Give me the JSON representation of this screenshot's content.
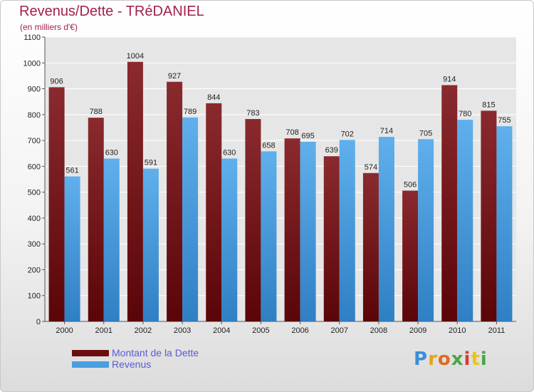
{
  "chart_data": {
    "type": "bar",
    "title": "Revenus/Dette - TRéDANIEL",
    "subtitle": "(en milliers d'€)",
    "categories": [
      "2000",
      "2001",
      "2002",
      "2003",
      "2004",
      "2005",
      "2006",
      "2007",
      "2008",
      "2009",
      "2010",
      "2011"
    ],
    "series": [
      {
        "name": "Montant de la Dette",
        "color": "#7a1518",
        "values": [
          906,
          788,
          1004,
          927,
          844,
          783,
          708,
          639,
          574,
          506,
          914,
          815
        ]
      },
      {
        "name": "Revenus",
        "color": "#4a9ee0",
        "values": [
          561,
          630,
          591,
          789,
          630,
          658,
          695,
          702,
          714,
          705,
          780,
          755
        ]
      }
    ],
    "ylim": [
      0,
      1100
    ],
    "yticks": [
      0,
      100,
      200,
      300,
      400,
      500,
      600,
      700,
      800,
      900,
      1000,
      1100
    ],
    "grid": true,
    "legend_position": "bottom-left",
    "data_labels": true
  },
  "legend": {
    "dette_label": "Montant de la Dette",
    "revenus_label": "Revenus",
    "dette_color": "#6b0d0f",
    "revenus_color": "#4a9ee0",
    "text_color": "#5b5bd6"
  },
  "logo": {
    "letters": [
      "P",
      "r",
      "o",
      "x",
      "i",
      "t",
      "i"
    ],
    "colors": [
      "#3a8fd8",
      "#e8a21d",
      "#e06b1f",
      "#4aa54a",
      "#d93a3a",
      "#e8c31d",
      "#4aa54a"
    ]
  }
}
